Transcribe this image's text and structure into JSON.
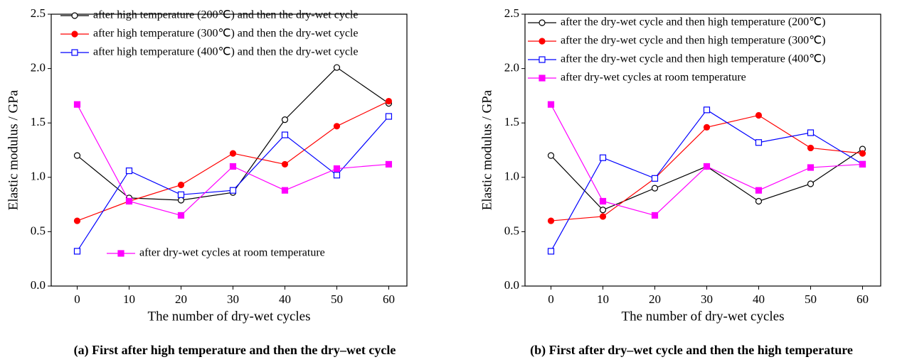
{
  "chart_data": [
    {
      "type": "line",
      "caption": "(a) First after high temperature and then the dry–wet cycle",
      "xlabel": "The number of dry-wet cycles",
      "ylabel": "Elastic modulus / GPa",
      "x": [
        0,
        10,
        20,
        30,
        40,
        50,
        60
      ],
      "xlim": [
        -5,
        63.5
      ],
      "xticks": [
        0,
        10,
        20,
        30,
        40,
        50,
        60
      ],
      "ylim": [
        0,
        2.5
      ],
      "yticks": [
        {
          "value": 0,
          "label": "0.0"
        },
        0.5,
        {
          "value": 1,
          "label": "1.0"
        },
        1.5,
        {
          "value": 2,
          "label": "2.0"
        },
        2.5
      ],
      "series": [
        {
          "name": "after high temperature (200℃) and then the dry-wet cycle",
          "color": "#000000",
          "marker": "open-circle",
          "values": [
            1.2,
            0.81,
            0.79,
            0.86,
            1.53,
            2.01,
            1.68
          ]
        },
        {
          "name": "after high temperature (300℃) and then the dry-wet cycle",
          "color": "#ff0000",
          "marker": "filled-circle",
          "values": [
            0.6,
            0.78,
            0.93,
            1.22,
            1.12,
            1.47,
            1.7
          ]
        },
        {
          "name": "after high temperature (400℃) and then the dry-wet cycle",
          "color": "#0000ff",
          "marker": "open-square",
          "values": [
            0.32,
            1.06,
            0.84,
            0.88,
            1.39,
            1.02,
            1.56
          ]
        },
        {
          "name": "after dry-wet cycles at room temperature",
          "color": "#ff00ff",
          "marker": "filled-square",
          "values": [
            1.67,
            0.78,
            0.65,
            1.1,
            0.88,
            1.08,
            1.12
          ]
        }
      ]
    },
    {
      "type": "line",
      "caption": "(b) First after dry–wet cycle and then the high temperature",
      "xlabel": "The number of dry-wet cycles",
      "ylabel": "Elastic modulus / GPa",
      "x": [
        0,
        10,
        20,
        30,
        40,
        50,
        60
      ],
      "xlim": [
        -5,
        63.5
      ],
      "xticks": [
        0,
        10,
        20,
        30,
        40,
        50,
        60
      ],
      "ylim": [
        0,
        2.5
      ],
      "yticks": [
        {
          "value": 0,
          "label": "0.0"
        },
        0.5,
        {
          "value": 1,
          "label": "1.0"
        },
        1.5,
        {
          "value": 2,
          "label": "2.0"
        },
        2.5
      ],
      "series": [
        {
          "name": "after the dry-wet cycle and then high temperature (200℃)",
          "color": "#000000",
          "marker": "open-circle",
          "values": [
            1.2,
            0.7,
            0.9,
            1.1,
            0.78,
            0.94,
            1.26
          ]
        },
        {
          "name": "after the dry-wet cycle and then high temperature (300℃)",
          "color": "#ff0000",
          "marker": "filled-circle",
          "values": [
            0.6,
            0.64,
            0.99,
            1.46,
            1.57,
            1.27,
            1.22
          ]
        },
        {
          "name": "after the dry-wet cycle and then high temperature (400℃)",
          "color": "#0000ff",
          "marker": "open-square",
          "values": [
            0.32,
            1.18,
            0.99,
            1.62,
            1.32,
            1.41,
            1.12
          ]
        },
        {
          "name": "after dry-wet cycles at room temperature",
          "color": "#ff00ff",
          "marker": "filled-square",
          "values": [
            1.67,
            0.78,
            0.65,
            1.1,
            0.88,
            1.09,
            1.12
          ]
        }
      ]
    }
  ]
}
